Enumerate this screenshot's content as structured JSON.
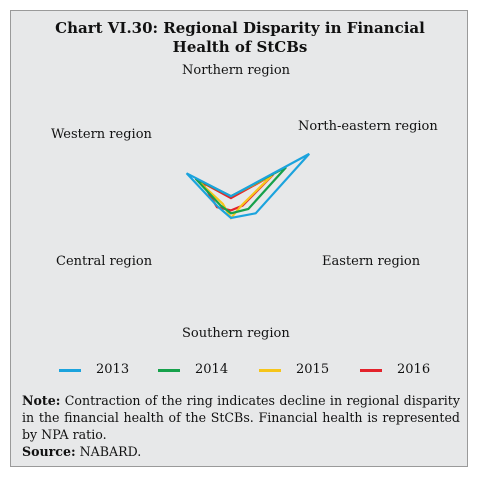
{
  "title_line1": "Chart VI.30: Regional Disparity in Financial",
  "title_line2": "Health of StCBs",
  "note_label": "Note:",
  "note_text": "Contraction of the ring indicates decline in regional disparity in the financial health of the StCBs. Financial health is represented by NPA ratio.",
  "source_label": "Source:",
  "source_text": "NABARD.",
  "chart_data": {
    "type": "radar",
    "axes": [
      "Northern region",
      "North-eastern region",
      "Eastern region",
      "Southern region",
      "Central region",
      "Western region"
    ],
    "rlim": [
      0,
      100
    ],
    "grid": false,
    "legend": "bottom",
    "series": [
      {
        "name": "2013",
        "color": "#1ba3dd",
        "values": [
          3,
          95,
          30,
          20,
          16,
          54
        ]
      },
      {
        "name": "2014",
        "color": "#16a14b",
        "values": [
          3,
          67,
          21,
          15,
          13,
          43
        ]
      },
      {
        "name": "2015",
        "color": "#f6c51a",
        "values": [
          3,
          50,
          13,
          20,
          10,
          43
        ]
      },
      {
        "name": "2016",
        "color": "#e3222b",
        "values": [
          1,
          51,
          14,
          12,
          17,
          35
        ]
      }
    ]
  }
}
